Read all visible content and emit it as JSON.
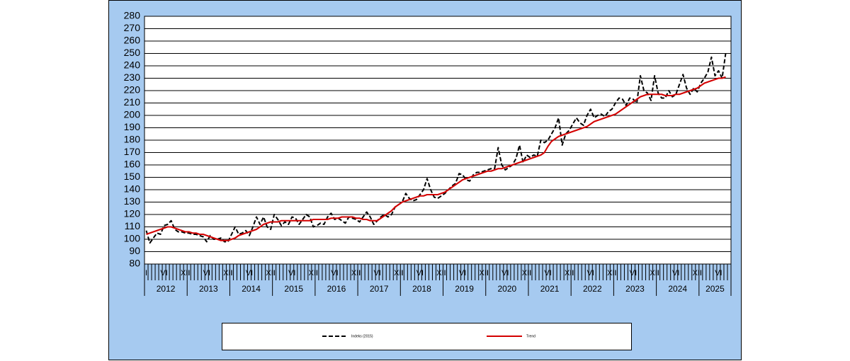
{
  "chart_data": {
    "type": "line",
    "categories": [
      "I",
      null,
      null,
      null,
      null,
      "VI",
      null,
      null,
      null,
      null,
      null,
      "XII",
      "I",
      null,
      null,
      null,
      null,
      "VI",
      null,
      null,
      null,
      null,
      null,
      "XII",
      "I",
      null,
      null,
      null,
      null,
      "VI",
      null,
      null,
      null,
      null,
      null,
      "XII",
      "I",
      null,
      null,
      null,
      null,
      "VI",
      null,
      null,
      null,
      null,
      null,
      "XII",
      "I",
      null,
      null,
      null,
      null,
      "VI",
      null,
      null,
      null,
      null,
      null,
      "XII",
      "I",
      null,
      null,
      null,
      null,
      "VI",
      null,
      null,
      null,
      null,
      null,
      "XII",
      "I",
      null,
      null,
      null,
      null,
      "VI",
      null,
      null,
      null,
      null,
      null,
      "XII",
      "I",
      null,
      null,
      null,
      null,
      "VI",
      null,
      null,
      null,
      null,
      null,
      "XII",
      "I",
      null,
      null,
      null,
      null,
      "VI",
      null,
      null,
      null,
      null,
      null,
      "XII",
      "I",
      null,
      null,
      null,
      null,
      "VI",
      null,
      null,
      null,
      null,
      null,
      "XII",
      "I",
      null,
      null,
      null,
      null,
      "VI",
      null,
      null,
      null,
      null,
      null,
      "XII",
      "I",
      null,
      null,
      null,
      null,
      "VI",
      null,
      null,
      null,
      null,
      null,
      "XII",
      "I",
      null,
      null,
      null,
      null,
      "VI",
      null,
      null,
      null,
      null,
      null,
      "XII",
      "I",
      null,
      null,
      null,
      null,
      "VI",
      null,
      null,
      null
    ],
    "x_groups": [
      "2012",
      "2013",
      "2014",
      "2015",
      "2016",
      "2017",
      "2018",
      "2019",
      "2020",
      "2021",
      "2022",
      "2023",
      "2024",
      "2025"
    ],
    "series": [
      {
        "name": "Indeks (2015)",
        "color": "#000000",
        "dashed": true,
        "values": [
          107,
          97,
          101,
          105,
          104,
          111,
          112,
          115,
          108,
          106,
          106,
          105,
          105,
          104,
          104,
          103,
          102,
          98,
          103,
          100,
          100,
          101,
          98,
          98,
          104,
          110,
          104,
          105,
          107,
          103,
          110,
          118,
          112,
          118,
          110,
          108,
          120,
          116,
          111,
          114,
          112,
          118,
          117,
          112,
          116,
          120,
          118,
          110,
          111,
          113,
          112,
          118,
          121,
          116,
          117,
          115,
          113,
          118,
          117,
          116,
          114,
          118,
          122,
          118,
          112,
          115,
          118,
          120,
          118,
          120,
          126,
          128,
          130,
          137,
          133,
          131,
          132,
          136,
          140,
          149,
          140,
          134,
          133,
          135,
          137,
          140,
          143,
          145,
          153,
          152,
          148,
          147,
          152,
          154,
          154,
          155,
          156,
          157,
          157,
          174,
          160,
          156,
          158,
          160,
          165,
          176,
          162,
          168,
          166,
          168,
          167,
          180,
          178,
          180,
          185,
          190,
          198,
          176,
          185,
          188,
          193,
          198,
          194,
          192,
          200,
          205,
          198,
          200,
          201,
          199,
          203,
          205,
          210,
          214,
          213,
          208,
          214,
          213,
          210,
          232,
          220,
          218,
          212,
          232,
          218,
          214,
          214,
          220,
          215,
          217,
          225,
          233,
          222,
          217,
          222,
          219,
          226,
          230,
          235,
          247,
          232,
          236,
          230,
          250,
          null
        ]
      },
      {
        "name": "Trend",
        "color": "#d40000",
        "dashed": false,
        "values": [
          104,
          105,
          106,
          107,
          108,
          109,
          110,
          110,
          109,
          108,
          107,
          106,
          106,
          105,
          105,
          104,
          104,
          103,
          102,
          101,
          100,
          99,
          99,
          99,
          100,
          101,
          103,
          104,
          105,
          106,
          107,
          108,
          110,
          112,
          113,
          114,
          114,
          114,
          115,
          115,
          115,
          115,
          115,
          115,
          115,
          115,
          115,
          116,
          116,
          116,
          116,
          116,
          117,
          117,
          117,
          118,
          118,
          118,
          118,
          117,
          117,
          116,
          116,
          115,
          115,
          115,
          117,
          119,
          121,
          123,
          126,
          128,
          130,
          131,
          132,
          133,
          134,
          135,
          135,
          136,
          136,
          136,
          136,
          137,
          138,
          140,
          142,
          144,
          146,
          148,
          149,
          150,
          151,
          152,
          153,
          154,
          155,
          155,
          156,
          157,
          157,
          158,
          159,
          160,
          161,
          162,
          163,
          164,
          165,
          166,
          167,
          168,
          170,
          175,
          179,
          181,
          183,
          184,
          185,
          186,
          187,
          188,
          189,
          190,
          191,
          193,
          195,
          196,
          197,
          198,
          199,
          200,
          201,
          203,
          205,
          207,
          209,
          211,
          213,
          215,
          216,
          217,
          217,
          217,
          217,
          217,
          216,
          216,
          216,
          217,
          217,
          218,
          219,
          220,
          221,
          222,
          224,
          226,
          227,
          228,
          229,
          230,
          230,
          231,
          null
        ]
      }
    ],
    "ylim": [
      80,
      280
    ],
    "yticks": [
      80,
      90,
      100,
      110,
      120,
      130,
      140,
      150,
      160,
      170,
      180,
      190,
      200,
      210,
      220,
      230,
      240,
      250,
      260,
      270,
      280
    ],
    "grid": true
  }
}
